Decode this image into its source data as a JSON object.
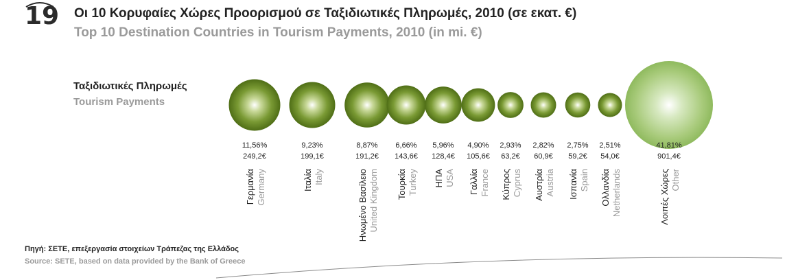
{
  "figure_number": "19",
  "title_gr": "Οι 10 Κορυφαίες Χώρες Προορισμού σε Ταξιδιωτικές  Πληρωμές, 2010 (σε εκατ. €)",
  "title_en": "Top 10 Destination Countries in Tourism Payments, 2010 (in mi. €)",
  "legend_gr": "Ταξιδιωτικές Πληρωμές",
  "legend_en": "Tourism Payments",
  "source_gr": "Πηγή: ΣΕΤΕ, επεξεργασία στοιχείων Τράπεζας της Ελλάδος",
  "source_en": "Source: SETE, based on data provided by the Bank of Greece",
  "colors": {
    "bubble_main": "#5e7f1f",
    "bubble_other": "#9cc46e",
    "title_grey": "#9a9a9a"
  },
  "chart_data": {
    "type": "bubble",
    "series": [
      {
        "name_gr": "Γερμανία",
        "name_en": "Germany",
        "percent": "11,56%",
        "value_label": "249,2€",
        "value": 249.2
      },
      {
        "name_gr": "Ιταλία",
        "name_en": "Italy",
        "percent": "9,23%",
        "value_label": "199,1€",
        "value": 199.1
      },
      {
        "name_gr": "Ηνωμένο Βασίλειο",
        "name_en": "United Kingdom",
        "percent": "8,87%",
        "value_label": "191,2€",
        "value": 191.2
      },
      {
        "name_gr": "Τουρκία",
        "name_en": "Turkey",
        "percent": "6,66%",
        "value_label": "143,6€",
        "value": 143.6
      },
      {
        "name_gr": "ΗΠΑ",
        "name_en": "USA",
        "percent": "5,96%",
        "value_label": "128,4€",
        "value": 128.4
      },
      {
        "name_gr": "Γαλλία",
        "name_en": "France",
        "percent": "4,90%",
        "value_label": "105,6€",
        "value": 105.6
      },
      {
        "name_gr": "Κύπρος",
        "name_en": "Cyprus",
        "percent": "2,93%",
        "value_label": "63,2€",
        "value": 63.2
      },
      {
        "name_gr": "Αυστρία",
        "name_en": "Austria",
        "percent": "2,82%",
        "value_label": "60,9€",
        "value": 60.9
      },
      {
        "name_gr": "Ισπανία",
        "name_en": "Spain",
        "percent": "2,75%",
        "value_label": "59,2€",
        "value": 59.2
      },
      {
        "name_gr": "Ολλανδία",
        "name_en": "Netherlands",
        "percent": "2,51%",
        "value_label": "54,0€",
        "value": 54.0
      },
      {
        "name_gr": "Λοιπές Χώρες",
        "name_en": "Other",
        "percent": "41,81%",
        "value_label": "901,4€",
        "value": 901.4
      }
    ]
  }
}
